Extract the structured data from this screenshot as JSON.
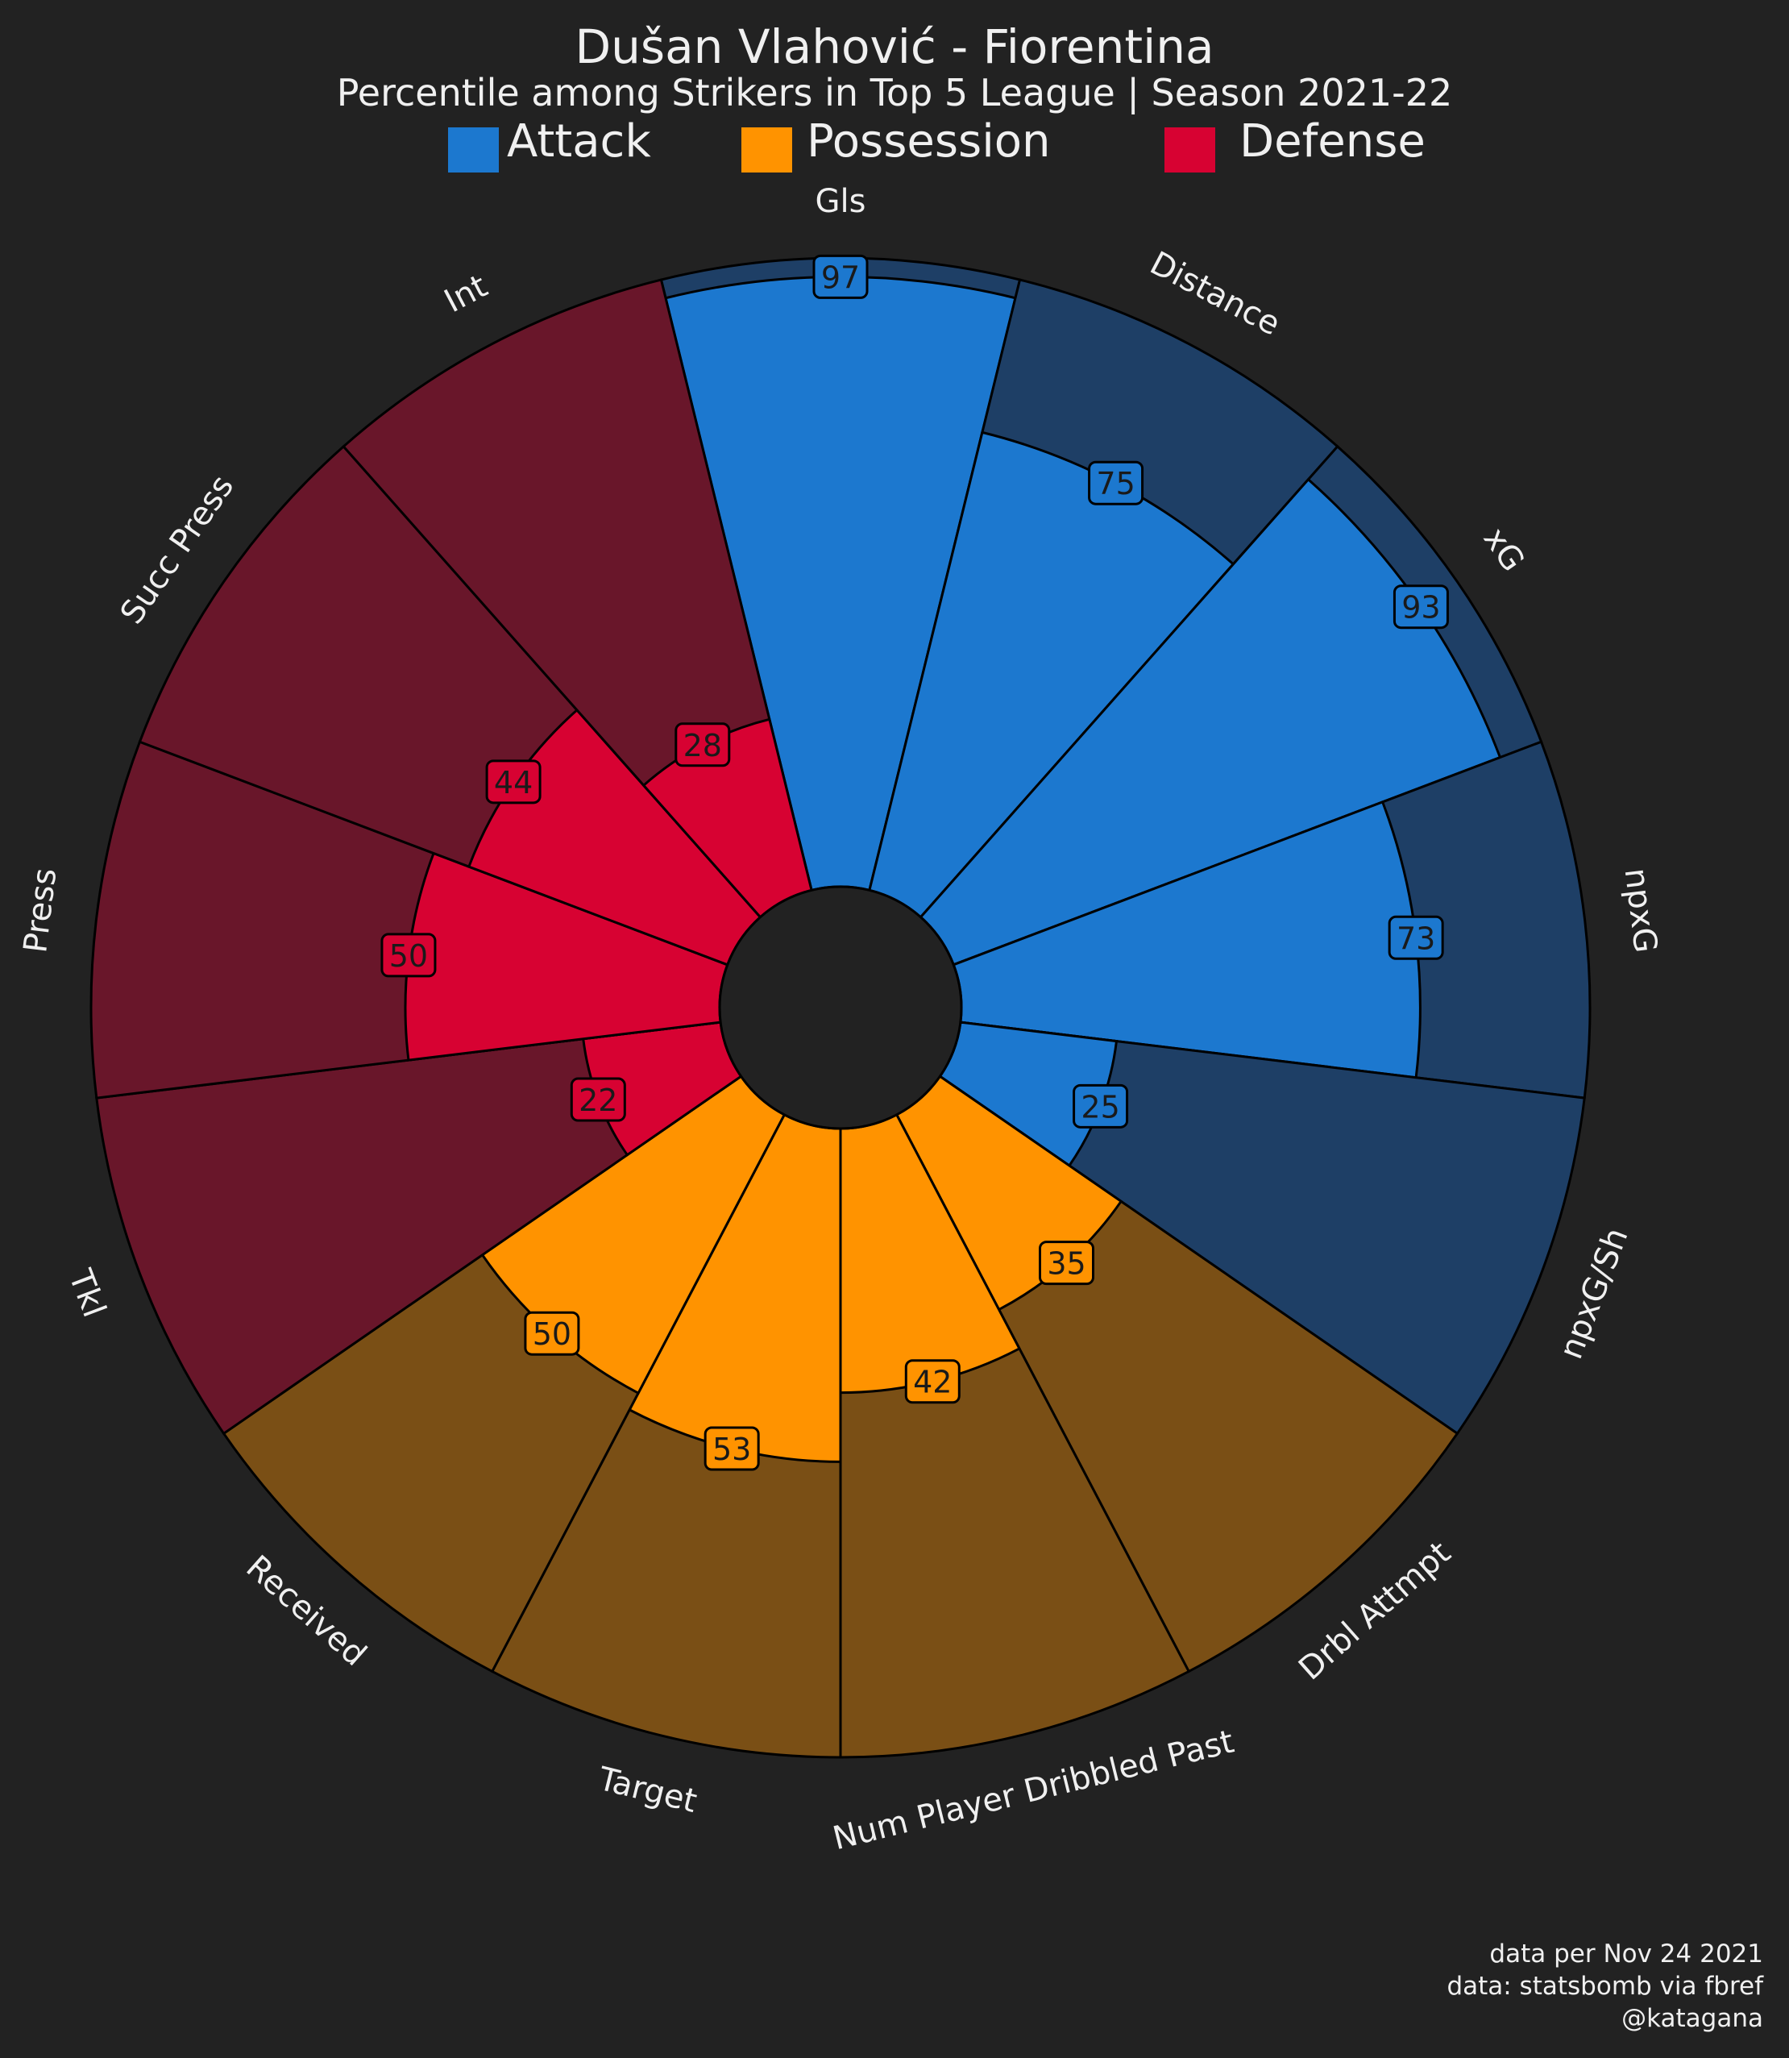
{
  "title": "Dušan Vlahović - Fiorentina",
  "subtitle": "Percentile among Strikers in Top 5 League | Season 2021-22",
  "legend": [
    {
      "label": "Attack",
      "color": "#1c78cf"
    },
    {
      "label": "Possession",
      "color": "#ff9300"
    },
    {
      "label": "Defense",
      "color": "#d70232"
    }
  ],
  "colors": {
    "background": "#222222",
    "attack": "#1c78cf",
    "attack_bg": "#1e3f66",
    "possession": "#ff9300",
    "possession_bg": "#7a4f15",
    "defense": "#d70232",
    "defense_bg": "#69162a",
    "edge": "#000000",
    "text": "#f0f0f0"
  },
  "chart_data": {
    "type": "pie",
    "subtype": "pizza",
    "range": [
      0,
      100
    ],
    "params": [
      {
        "label": "Gls",
        "value": 97,
        "group": "attack"
      },
      {
        "label": "Distance",
        "value": 75,
        "group": "attack"
      },
      {
        "label": "xG",
        "value": 93,
        "group": "attack"
      },
      {
        "label": "npxG",
        "value": 73,
        "group": "attack"
      },
      {
        "label": "npxG/Sh",
        "value": 25,
        "group": "attack"
      },
      {
        "label": "Drbl Attmpt",
        "value": 35,
        "group": "possession"
      },
      {
        "label": "Num Player Dribbled Past",
        "value": 42,
        "group": "possession"
      },
      {
        "label": "Target",
        "value": 53,
        "group": "possession"
      },
      {
        "label": "Received",
        "value": 50,
        "group": "possession"
      },
      {
        "label": "Tkl",
        "value": 22,
        "group": "defense"
      },
      {
        "label": "Press",
        "value": 50,
        "group": "defense"
      },
      {
        "label": "Succ Press",
        "value": 44,
        "group": "defense"
      },
      {
        "label": "Int",
        "value": 28,
        "group": "defense"
      }
    ]
  },
  "footer": {
    "line1": "data per Nov 24 2021",
    "line2": "data: statsbomb via fbref",
    "line3": "@katagana"
  }
}
